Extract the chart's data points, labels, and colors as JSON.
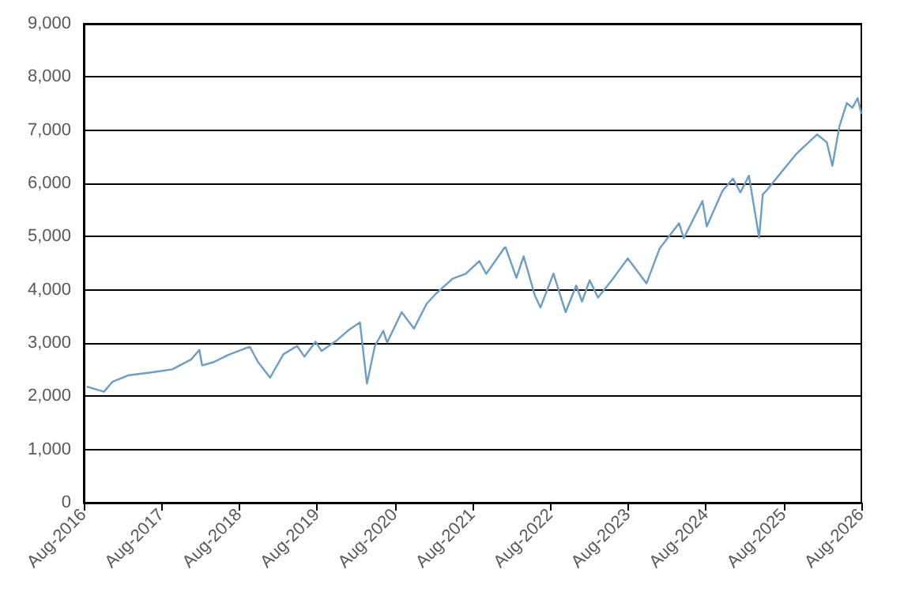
{
  "chart_data": {
    "type": "line",
    "line_style": "solid",
    "marker": "none",
    "grid": "y",
    "x": [
      "2016-08-15",
      "2016-11-04",
      "2016-12-13",
      "2017-03-01",
      "2017-06-19",
      "2017-09-20",
      "2017-12-18",
      "2018-01-26",
      "2018-02-08",
      "2018-04-02",
      "2018-06-12",
      "2018-09-20",
      "2018-10-29",
      "2018-12-24",
      "2019-02-25",
      "2019-04-30",
      "2019-06-03",
      "2019-07-26",
      "2019-08-23",
      "2019-10-30",
      "2019-12-27",
      "2020-02-19",
      "2020-03-23",
      "2020-04-29",
      "2020-06-08",
      "2020-06-26",
      "2020-09-02",
      "2020-10-30",
      "2020-12-28",
      "2021-02-12",
      "2021-04-29",
      "2021-06-30",
      "2021-09-02",
      "2021-10-04",
      "2021-12-29",
      "2022-01-03",
      "2022-02-23",
      "2022-03-29",
      "2022-05-20",
      "2022-06-16",
      "2022-08-16",
      "2022-10-12",
      "2022-12-01",
      "2022-12-28",
      "2023-02-02",
      "2023-03-13",
      "2023-05-19",
      "2023-07-31",
      "2023-10-27",
      "2023-12-28",
      "2024-03-28",
      "2024-04-19",
      "2024-07-16",
      "2024-08-05",
      "2024-10-18",
      "2024-12-06",
      "2025-01-10",
      "2025-02-19",
      "2025-04-08",
      "2025-04-25",
      "2025-05-20",
      "2025-07-15",
      "2025-10-01",
      "2026-01-05",
      "2026-02-20",
      "2026-03-18",
      "2026-04-20",
      "2026-05-25",
      "2026-06-20",
      "2026-07-15",
      "2026-08-01"
    ],
    "series": [
      {
        "color": "#6a9ec8",
        "values": [
          2180,
          2085,
          2270,
          2395,
          2450,
          2505,
          2690,
          2870,
          2580,
          2640,
          2780,
          2930,
          2640,
          2350,
          2790,
          2945,
          2745,
          3025,
          2850,
          3040,
          3240,
          3386,
          2237,
          2940,
          3230,
          3010,
          3580,
          3270,
          3735,
          3935,
          4210,
          4300,
          4540,
          4300,
          4790,
          4800,
          4225,
          4630,
          3900,
          3670,
          4305,
          3580,
          4080,
          3780,
          4180,
          3855,
          4190,
          4590,
          4120,
          4780,
          5250,
          4970,
          5670,
          5190,
          5860,
          6090,
          5830,
          6145,
          4980,
          5790,
          5900,
          6180,
          6560,
          6920,
          6770,
          6330,
          7070,
          7510,
          7420,
          7600,
          7310
        ]
      }
    ],
    "xlim": [
      "2016-08-01",
      "2026-08-01"
    ],
    "xticks": [
      {
        "value": "2016-08-01",
        "label": "Aug-2016"
      },
      {
        "value": "2017-08-01",
        "label": "Aug-2017"
      },
      {
        "value": "2018-08-01",
        "label": "Aug-2018"
      },
      {
        "value": "2019-08-01",
        "label": "Aug-2019"
      },
      {
        "value": "2020-08-01",
        "label": "Aug-2020"
      },
      {
        "value": "2021-08-01",
        "label": "Aug-2021"
      },
      {
        "value": "2022-08-01",
        "label": "Aug-2022"
      },
      {
        "value": "2023-08-01",
        "label": "Aug-2023"
      },
      {
        "value": "2024-08-01",
        "label": "Aug-2024"
      },
      {
        "value": "2025-08-01",
        "label": "Aug-2025"
      },
      {
        "value": "2026-08-01",
        "label": "Aug-2026"
      }
    ],
    "ylim": [
      0,
      9000
    ],
    "yticks": [
      0,
      {
        "value": 1000,
        "label": "1,000"
      },
      {
        "value": 2000,
        "label": "2,000"
      },
      {
        "value": 3000,
        "label": "3,000"
      },
      {
        "value": 4000,
        "label": "4,000"
      },
      {
        "value": 5000,
        "label": "5,000"
      },
      {
        "value": 6000,
        "label": "6,000"
      },
      {
        "value": 7000,
        "label": "7,000"
      },
      {
        "value": 8000,
        "label": "8,000"
      },
      {
        "value": 9000,
        "label": "9,000"
      }
    ]
  }
}
